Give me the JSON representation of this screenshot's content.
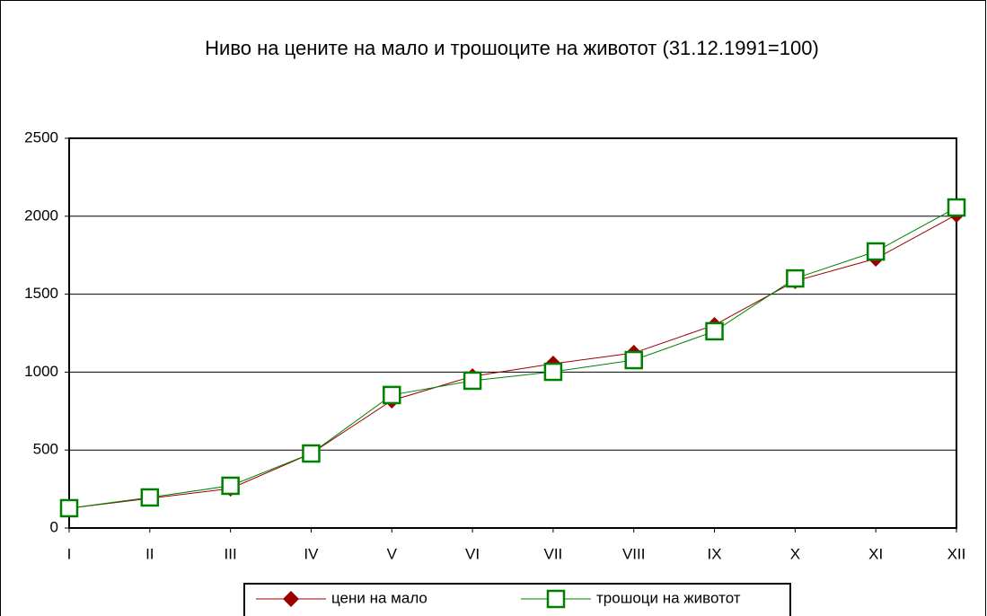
{
  "chart_data": {
    "type": "line",
    "title": "Ниво на цените на мало и трошоците на животот (31.12.1991=100)",
    "categories": [
      "I",
      "II",
      "III",
      "IV",
      "V",
      "VI",
      "VII",
      "VIII",
      "IX",
      "X",
      "XI",
      "XII"
    ],
    "series": [
      {
        "name": "цени на мало",
        "color": "#990000",
        "marker": "diamond",
        "values": [
          127,
          190,
          253,
          478,
          818,
          973,
          1054,
          1123,
          1302,
          1584,
          1728,
          2010
        ]
      },
      {
        "name": "трошоци на животот",
        "color": "#008000",
        "marker": "square",
        "values": [
          127,
          196,
          271,
          478,
          853,
          945,
          1002,
          1077,
          1262,
          1601,
          1774,
          2056
        ]
      }
    ],
    "ylim": [
      0,
      2500
    ],
    "yticks": [
      0,
      500,
      1000,
      1500,
      2000,
      2500
    ],
    "grid": true
  }
}
